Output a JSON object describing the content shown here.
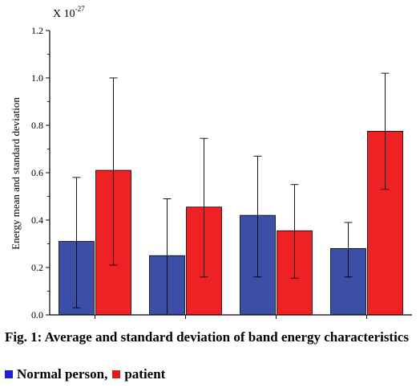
{
  "chart_data": {
    "type": "bar",
    "title": "",
    "xlabel": "",
    "ylabel": "Energy mean and standard deviation",
    "scale_label": "X 10",
    "scale_exponent": "-27",
    "ylim": [
      0,
      1.2
    ],
    "yticks": [
      "0.0",
      "0.2",
      "0.4",
      "0.6",
      "0.8",
      "1.0",
      "1.2"
    ],
    "categories": [
      "",
      "",
      "",
      ""
    ],
    "series": [
      {
        "name": "Normal person,",
        "color": "#3a4fa5",
        "values": [
          0.31,
          0.25,
          0.42,
          0.28
        ],
        "err_high": [
          0.58,
          0.49,
          0.67,
          0.39
        ],
        "err_low": [
          0.03,
          0.0,
          0.16,
          0.16
        ]
      },
      {
        "name": "patient",
        "color": "#ee2124",
        "values": [
          0.61,
          0.455,
          0.355,
          0.775
        ],
        "err_high": [
          1.0,
          0.745,
          0.55,
          1.02
        ],
        "err_low": [
          0.21,
          0.16,
          0.155,
          0.53
        ]
      }
    ],
    "grid": false,
    "legend_position": "bottom-left"
  },
  "caption": "Fig. 1: Average and standard deviation of band energy characteristics",
  "legend": {
    "normal_label": "Normal person,",
    "normal_color": "#1f1fd6",
    "patient_label": "patient",
    "patient_color": "#e21818"
  }
}
